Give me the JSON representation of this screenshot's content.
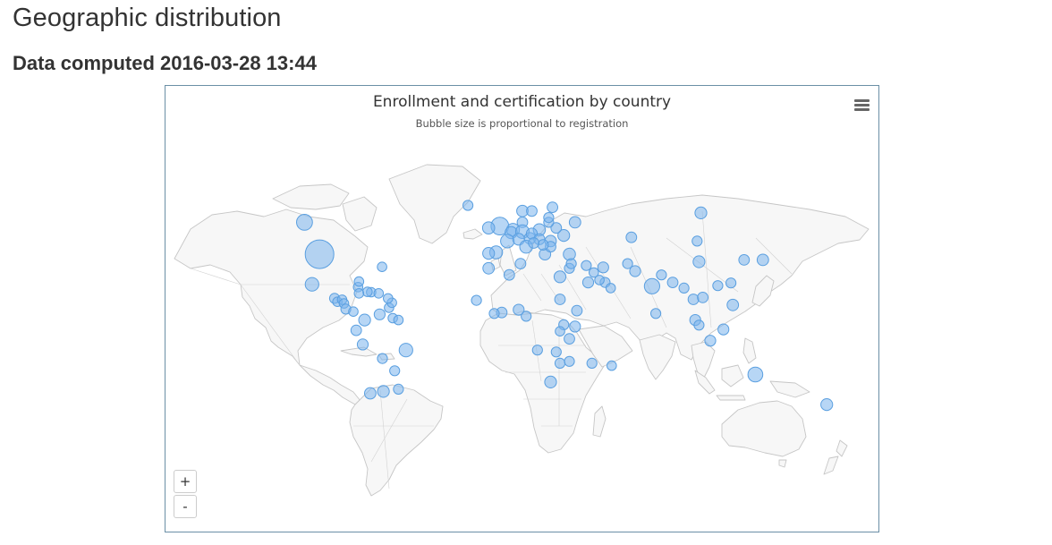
{
  "page": {
    "heading": "Geographic distribution",
    "subheading": "Data computed 2016-03-28 13:44"
  },
  "chart": {
    "title": "Enrollment and certification by country",
    "subtitle": "Bubble size is proportional to registration",
    "menu_icon": "hamburger-icon",
    "zoom_in_label": "+",
    "zoom_out_label": "-"
  },
  "colors": {
    "bubble_fill": "#7cb5ec",
    "bubble_stroke": "#5a9fe0",
    "land": "#f7f7f7",
    "land_border": "#c6c6c6",
    "frame_border": "#6b8fa6"
  },
  "chart_data": {
    "type": "scatter",
    "title": "Enrollment and certification by country",
    "subtitle": "Bubble size is proportional to registration",
    "projection": "world map, longitude/latitude",
    "points": [
      {
        "lon": -98,
        "lat": 39,
        "size": 100
      },
      {
        "lon": -106,
        "lat": 56,
        "size": 22
      },
      {
        "lon": -102,
        "lat": 23,
        "size": 14
      },
      {
        "lon": -2,
        "lat": 54,
        "size": 30
      },
      {
        "lon": -8,
        "lat": 53,
        "size": 10
      },
      {
        "lon": -19,
        "lat": 65,
        "size": 5
      },
      {
        "lon": 10,
        "lat": 62,
        "size": 8
      },
      {
        "lon": 15,
        "lat": 62,
        "size": 6
      },
      {
        "lon": 26,
        "lat": 64,
        "size": 6
      },
      {
        "lon": 10,
        "lat": 56,
        "size": 6
      },
      {
        "lon": 5,
        "lat": 52,
        "size": 12
      },
      {
        "lon": 4,
        "lat": 50.5,
        "size": 10
      },
      {
        "lon": 10,
        "lat": 51,
        "size": 14
      },
      {
        "lon": 2,
        "lat": 46,
        "size": 14
      },
      {
        "lon": 8,
        "lat": 47,
        "size": 9
      },
      {
        "lon": 14,
        "lat": 47.5,
        "size": 8
      },
      {
        "lon": 19,
        "lat": 52,
        "size": 10
      },
      {
        "lon": 15,
        "lat": 50,
        "size": 7
      },
      {
        "lon": 19,
        "lat": 47,
        "size": 7
      },
      {
        "lon": 25,
        "lat": 46,
        "size": 8
      },
      {
        "lon": 12,
        "lat": 43,
        "size": 12
      },
      {
        "lon": -4,
        "lat": 40,
        "size": 12
      },
      {
        "lon": -8,
        "lat": 39.5,
        "size": 9
      },
      {
        "lon": 22,
        "lat": 39,
        "size": 8
      },
      {
        "lon": 25,
        "lat": 43,
        "size": 6
      },
      {
        "lon": 21,
        "lat": 44,
        "size": 6
      },
      {
        "lon": 16,
        "lat": 45,
        "size": 6
      },
      {
        "lon": 32,
        "lat": 49,
        "size": 9
      },
      {
        "lon": 28,
        "lat": 53,
        "size": 6
      },
      {
        "lon": 24,
        "lat": 56,
        "size": 5
      },
      {
        "lon": 24,
        "lat": 58.5,
        "size": 5
      },
      {
        "lon": 38,
        "lat": 56,
        "size": 8
      },
      {
        "lon": 105,
        "lat": 61,
        "size": 9
      },
      {
        "lon": 68,
        "lat": 48,
        "size": 6
      },
      {
        "lon": 103,
        "lat": 46,
        "size": 5
      },
      {
        "lon": 104,
        "lat": 35,
        "size": 9
      },
      {
        "lon": 128,
        "lat": 36,
        "size": 6
      },
      {
        "lon": 138,
        "lat": 36,
        "size": 8
      },
      {
        "lon": 121,
        "lat": 23.7,
        "size": 5
      },
      {
        "lon": 114,
        "lat": 22.3,
        "size": 5
      },
      {
        "lon": 35,
        "lat": 39,
        "size": 10
      },
      {
        "lon": 35,
        "lat": 31.5,
        "size": 5
      },
      {
        "lon": 36,
        "lat": 34,
        "size": 5
      },
      {
        "lon": 44,
        "lat": 33,
        "size": 5
      },
      {
        "lon": 53,
        "lat": 32,
        "size": 7
      },
      {
        "lon": 45,
        "lat": 24,
        "size": 7
      },
      {
        "lon": 54,
        "lat": 24,
        "size": 5
      },
      {
        "lon": 51,
        "lat": 25.3,
        "size": 4
      },
      {
        "lon": 48,
        "lat": 29.3,
        "size": 4
      },
      {
        "lon": 57,
        "lat": 21,
        "size": 4
      },
      {
        "lon": 70,
        "lat": 30,
        "size": 7
      },
      {
        "lon": 66,
        "lat": 34,
        "size": 5
      },
      {
        "lon": 79,
        "lat": 22,
        "size": 20
      },
      {
        "lon": 84,
        "lat": 28,
        "size": 5
      },
      {
        "lon": 90,
        "lat": 24,
        "size": 6
      },
      {
        "lon": 81,
        "lat": 7.5,
        "size": 5
      },
      {
        "lon": 96,
        "lat": 21,
        "size": 5
      },
      {
        "lon": 101,
        "lat": 15,
        "size": 6
      },
      {
        "lon": 106,
        "lat": 16,
        "size": 6
      },
      {
        "lon": 102,
        "lat": 4,
        "size": 7
      },
      {
        "lon": 104,
        "lat": 1.3,
        "size": 5
      },
      {
        "lon": 122,
        "lat": 12,
        "size": 8
      },
      {
        "lon": 117,
        "lat": -1,
        "size": 7
      },
      {
        "lon": 110,
        "lat": -7,
        "size": 7
      },
      {
        "lon": 134,
        "lat": -25,
        "size": 18
      },
      {
        "lon": 172,
        "lat": -41,
        "size": 9
      },
      {
        "lon": -8,
        "lat": 31.5,
        "size": 8
      },
      {
        "lon": 3,
        "lat": 28,
        "size": 6
      },
      {
        "lon": 9,
        "lat": 34,
        "size": 6
      },
      {
        "lon": 30,
        "lat": 27,
        "size": 9
      },
      {
        "lon": 30,
        "lat": 15,
        "size": 6
      },
      {
        "lon": 39,
        "lat": 9,
        "size": 6
      },
      {
        "lon": 8,
        "lat": 9.5,
        "size": 7
      },
      {
        "lon": -1,
        "lat": 8,
        "size": 6
      },
      {
        "lon": -5,
        "lat": 7.5,
        "size": 5
      },
      {
        "lon": -14.5,
        "lat": 14.5,
        "size": 5
      },
      {
        "lon": 12,
        "lat": 6,
        "size": 5
      },
      {
        "lon": 38,
        "lat": 0.5,
        "size": 7
      },
      {
        "lon": 32,
        "lat": 1.5,
        "size": 5
      },
      {
        "lon": 35,
        "lat": -6,
        "size": 6
      },
      {
        "lon": 30,
        "lat": -2,
        "size": 4
      },
      {
        "lon": 18,
        "lat": -12,
        "size": 5
      },
      {
        "lon": 28,
        "lat": -13,
        "size": 5
      },
      {
        "lon": 30,
        "lat": -19,
        "size": 5
      },
      {
        "lon": 35,
        "lat": -18,
        "size": 5
      },
      {
        "lon": 25,
        "lat": -29,
        "size": 9
      },
      {
        "lon": 47,
        "lat": -19,
        "size": 5
      },
      {
        "lon": 57.5,
        "lat": -20.3,
        "size": 4
      },
      {
        "lon": -90,
        "lat": 15.5,
        "size": 5
      },
      {
        "lon": -88.5,
        "lat": 13.7,
        "size": 4
      },
      {
        "lon": -86,
        "lat": 14.8,
        "size": 4
      },
      {
        "lon": -85,
        "lat": 12.8,
        "size": 4
      },
      {
        "lon": -84,
        "lat": 9.8,
        "size": 5
      },
      {
        "lon": -80,
        "lat": 8.5,
        "size": 4
      },
      {
        "lon": -77.5,
        "lat": 21.5,
        "size": 4
      },
      {
        "lon": -70.5,
        "lat": 18.8,
        "size": 4
      },
      {
        "lon": -72.5,
        "lat": 19,
        "size": 4
      },
      {
        "lon": -77,
        "lat": 18.2,
        "size": 4
      },
      {
        "lon": -66.5,
        "lat": 18.2,
        "size": 4
      },
      {
        "lon": -61,
        "lat": 10.5,
        "size": 4
      },
      {
        "lon": -74,
        "lat": 4,
        "size": 9
      },
      {
        "lon": -66,
        "lat": 7,
        "size": 7
      },
      {
        "lon": -78.5,
        "lat": -1.5,
        "size": 6
      },
      {
        "lon": -75,
        "lat": -9,
        "size": 7
      },
      {
        "lon": -52,
        "lat": -12,
        "size": 14
      },
      {
        "lon": -64.5,
        "lat": -16.5,
        "size": 5
      },
      {
        "lon": -58,
        "lat": -23,
        "size": 5
      },
      {
        "lon": -64,
        "lat": -34,
        "size": 9
      },
      {
        "lon": -56,
        "lat": -32.8,
        "size": 5
      },
      {
        "lon": -71,
        "lat": -35,
        "size": 8
      },
      {
        "lon": -59,
        "lat": 5,
        "size": 4
      },
      {
        "lon": -56,
        "lat": 4,
        "size": 4
      },
      {
        "lon": -59.5,
        "lat": 13.2,
        "size": 4
      },
      {
        "lon": -61.5,
        "lat": 15.5,
        "size": 4
      },
      {
        "lon": -64.7,
        "lat": 32.3,
        "size": 4
      },
      {
        "lon": -77,
        "lat": 24.5,
        "size": 4
      }
    ]
  }
}
